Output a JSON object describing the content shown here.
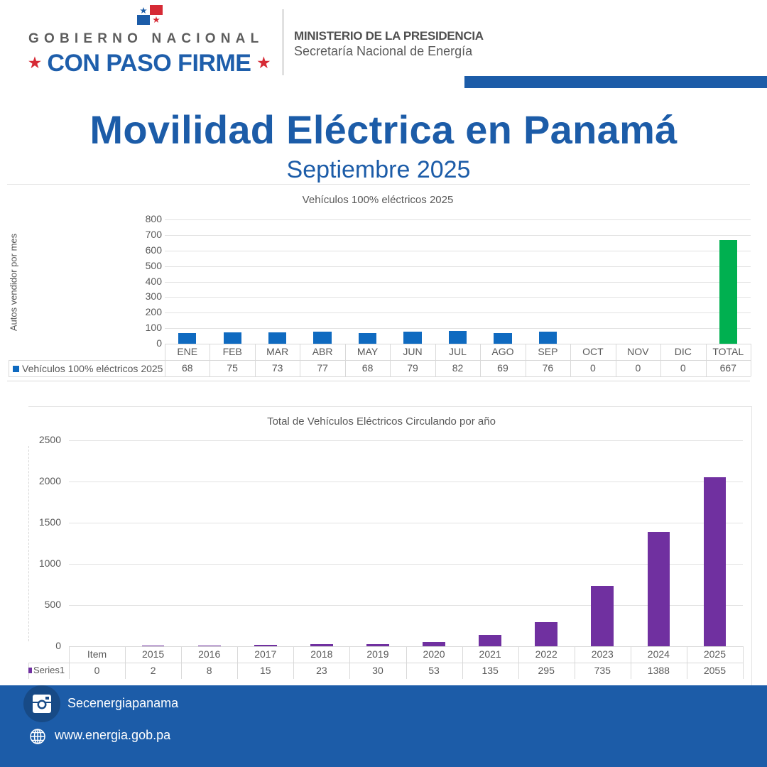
{
  "header": {
    "logo_line1": "GOBIERNO NACIONAL",
    "logo_line2": "CON PASO FIRME",
    "ministry": "MINISTERIO DE LA PRESIDENCIA",
    "secretariat": "Secretaría Nacional de Energía"
  },
  "page": {
    "title": "Movilidad Eléctrica en Panamá",
    "subtitle": "Septiembre 2025"
  },
  "colors": {
    "brand_blue": "#1c5ca8",
    "bar_blue": "#0f6ac0",
    "bar_green": "#00b050",
    "bar_purple": "#7030a0",
    "flag_red": "#d62a35"
  },
  "chart_data": [
    {
      "type": "bar",
      "title": "Vehículos 100% eléctricos 2025",
      "ylabel": "Autos vendidor por mes",
      "xlabel": "",
      "ylim": [
        0,
        800
      ],
      "yticks": [
        "800",
        "700",
        "600",
        "500",
        "400",
        "300",
        "200",
        "100",
        "0"
      ],
      "grid": true,
      "categories": [
        "ENE",
        "FEB",
        "MAR",
        "ABR",
        "MAY",
        "JUN",
        "JUL",
        "AGO",
        "SEP",
        "OCT",
        "NOV",
        "DIC",
        "TOTAL"
      ],
      "series": [
        {
          "name": "Vehículos 100% eléctricos 2025",
          "values": [
            68,
            75,
            73,
            77,
            68,
            79,
            82,
            69,
            76,
            0,
            0,
            0,
            667
          ],
          "labels": [
            "68",
            "75",
            "73",
            "77",
            "68",
            "79",
            "82",
            "69",
            "76",
            "0",
            "0",
            "0",
            "667"
          ]
        }
      ],
      "legend": "data-table-left"
    },
    {
      "type": "bar",
      "title": "Total de Vehículos Eléctricos Circulando por año",
      "xlabel": "",
      "ylabel": "",
      "ylim": [
        0,
        2500
      ],
      "yticks": [
        "2500",
        "2000",
        "1500",
        "1000",
        "500",
        "0"
      ],
      "grid": true,
      "categories": [
        "Item",
        "2015",
        "2016",
        "2017",
        "2018",
        "2019",
        "2020",
        "2021",
        "2022",
        "2023",
        "2024",
        "2025"
      ],
      "series": [
        {
          "name": "Series1",
          "values": [
            0,
            2,
            8,
            15,
            23,
            30,
            53,
            135,
            295,
            735,
            1388,
            2055
          ],
          "labels": [
            "0",
            "2",
            "8",
            "15",
            "23",
            "30",
            "53",
            "135",
            "295",
            "735",
            "1388",
            "2055"
          ]
        }
      ],
      "legend": "data-table-left"
    }
  ],
  "footer": {
    "instagram_icon": "instagram-icon",
    "instagram_handle": "Secenergiapanama",
    "globe_icon": "globe-icon",
    "website": "www.energia.gob.pa"
  }
}
